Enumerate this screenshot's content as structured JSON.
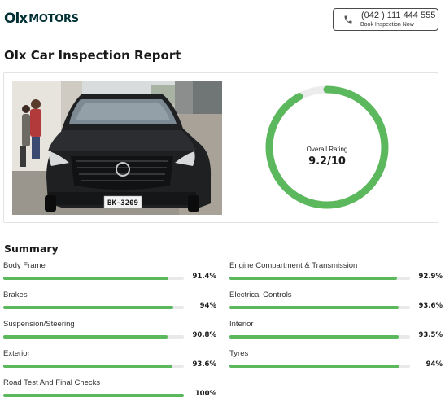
{
  "header": {
    "logo_mark": "Olx",
    "logo_text": "MOTORS",
    "call": {
      "number": "(042 ) 111 444 555",
      "label": "Book Inspection Now",
      "icon": "phone-icon"
    }
  },
  "page_title": "Olx Car Inspection Report",
  "rating": {
    "label": "Overall Rating",
    "value": "9.2/10",
    "fraction": 0.92,
    "color": "#5cb85c",
    "track_color": "#ececec"
  },
  "car_photo": {
    "plate": "BK-3209"
  },
  "summary": {
    "title": "Summary",
    "bar_color": "#5cb85c",
    "items": [
      {
        "label": "Body Frame",
        "value": "91.4%",
        "percent": 91.4
      },
      {
        "label": "Engine Compartment & Transmission",
        "value": "92.9%",
        "percent": 92.9
      },
      {
        "label": "Brakes",
        "value": "94%",
        "percent": 94
      },
      {
        "label": "Electrical Controls",
        "value": "93.6%",
        "percent": 93.6
      },
      {
        "label": "Suspension/Steering",
        "value": "90.8%",
        "percent": 90.8
      },
      {
        "label": "Interior",
        "value": "93.5%",
        "percent": 93.5
      },
      {
        "label": "Exterior",
        "value": "93.6%",
        "percent": 93.6
      },
      {
        "label": "Tyres",
        "value": "94%",
        "percent": 94
      },
      {
        "label": "Road Test And Final Checks",
        "value": "100%",
        "percent": 100
      }
    ]
  }
}
